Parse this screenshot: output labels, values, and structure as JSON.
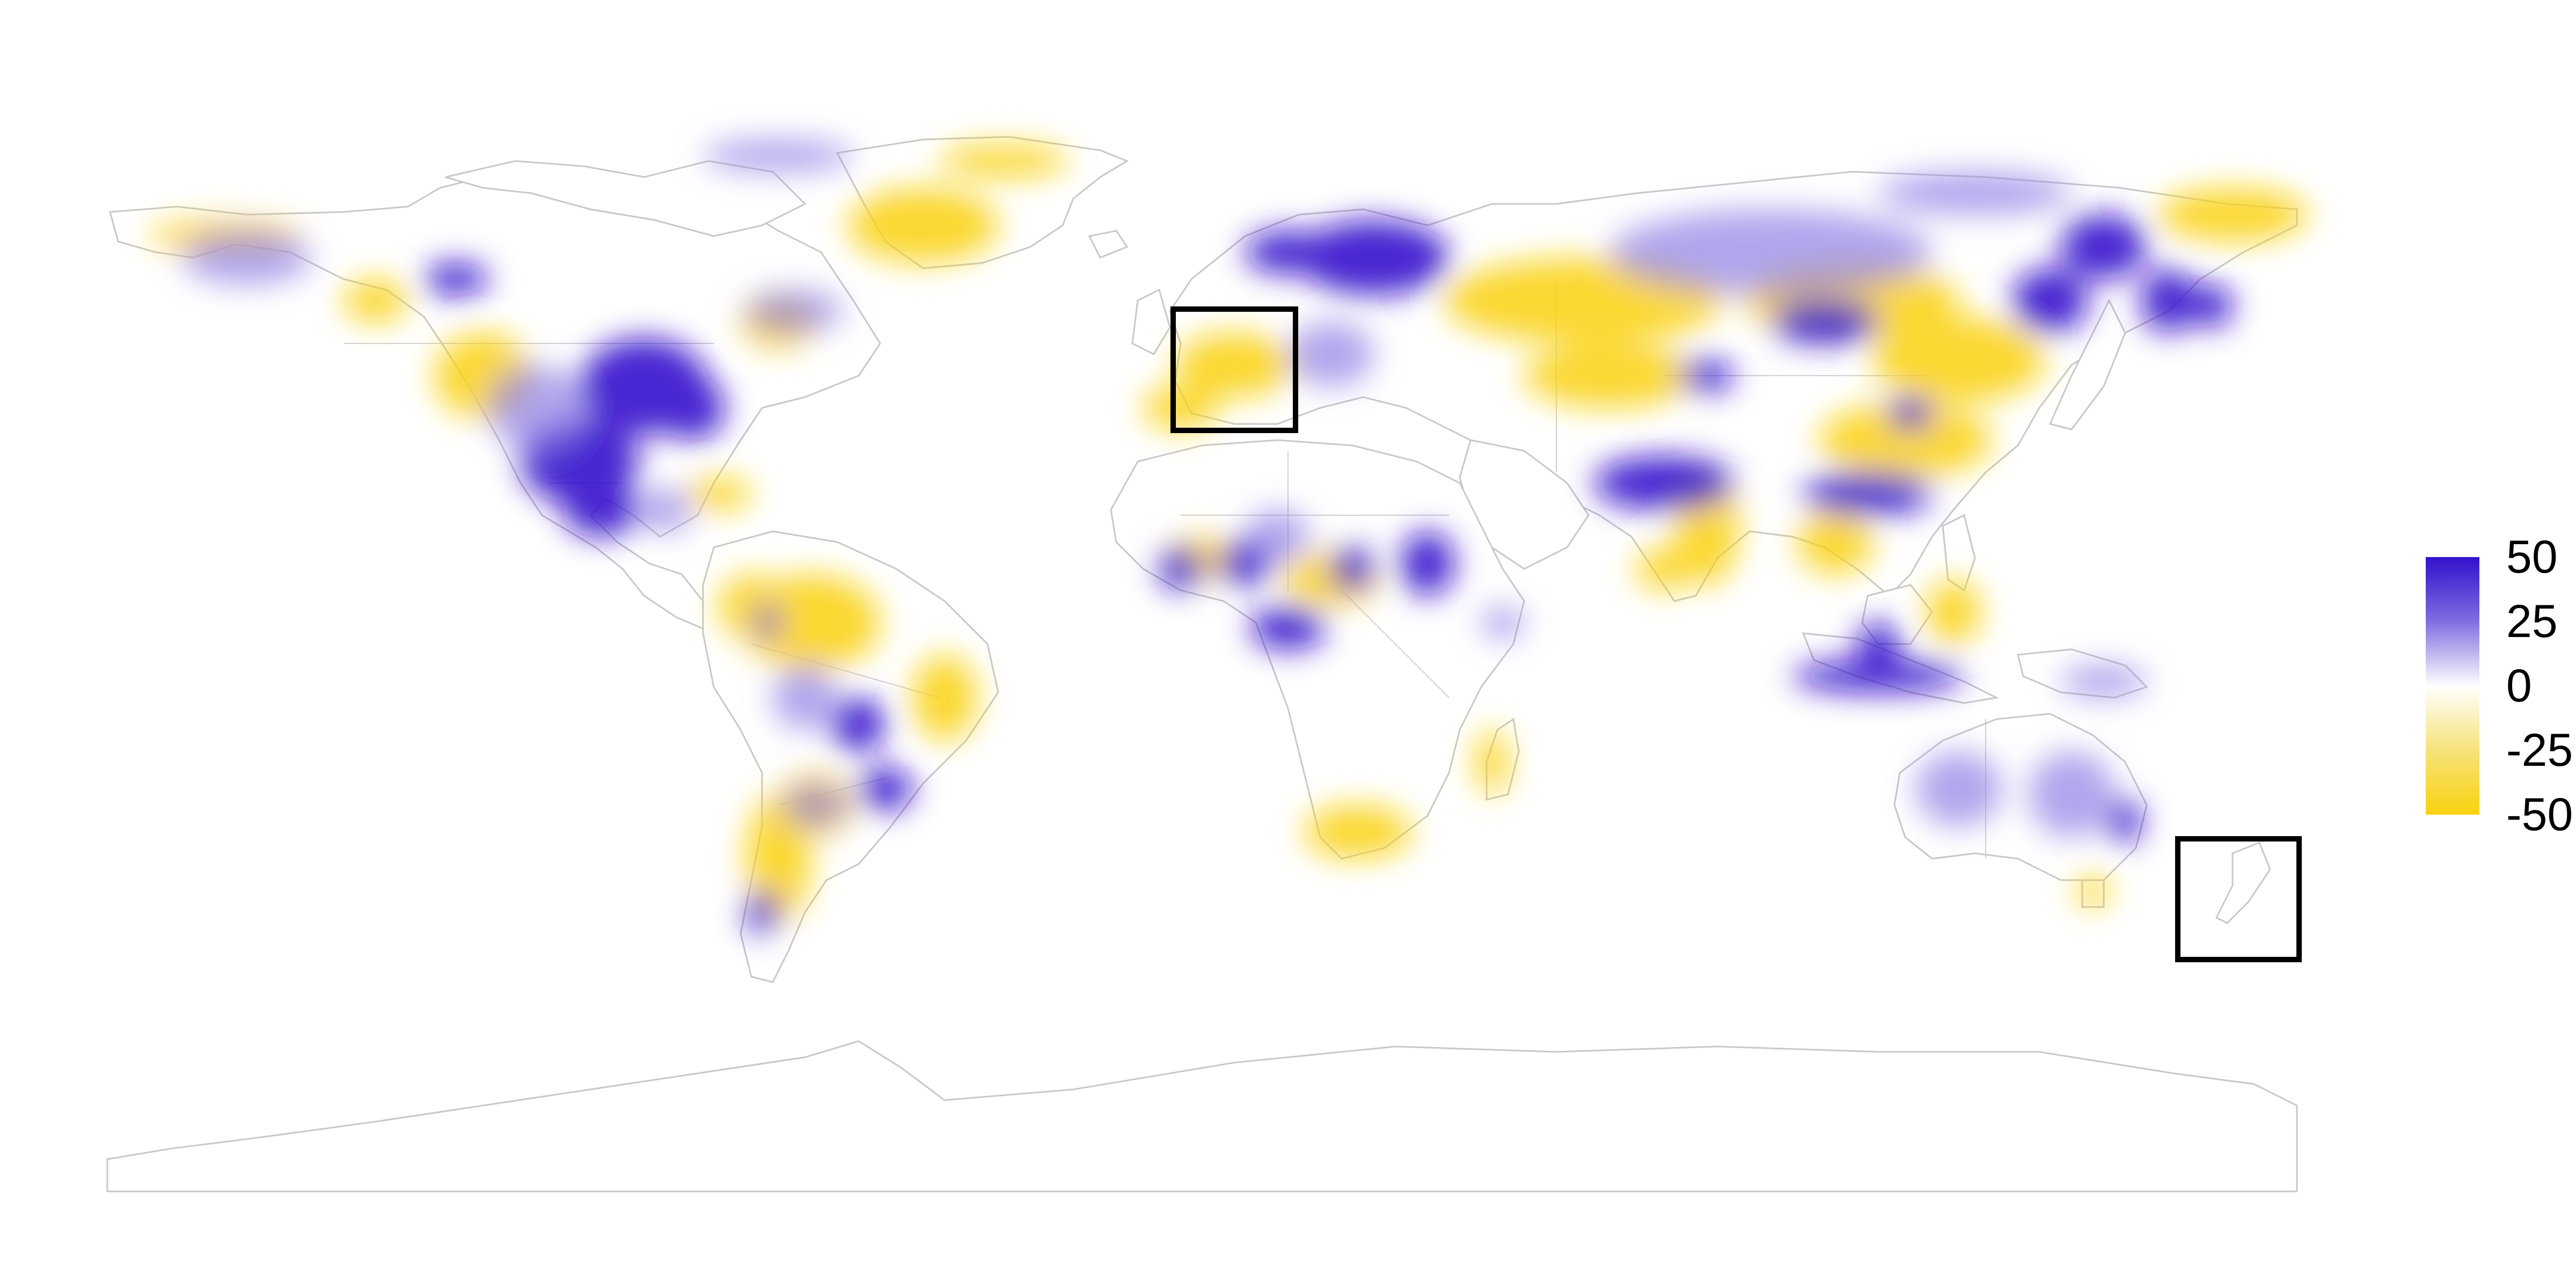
{
  "map": {
    "fill_colors": {
      "high": "#3311cc",
      "mid_high": "#7f6ee0",
      "zero": "#ffffff",
      "mid_low": "#f6e27a",
      "low": "#f9d20f"
    },
    "border_color": "#c8c8c8",
    "highlight_box_color": "#000000",
    "highlighted_regions_count": 2
  },
  "legend": {
    "ticks": [
      "50",
      "25",
      "0",
      "-25",
      "-50"
    ],
    "range": [
      -50,
      50
    ]
  }
}
